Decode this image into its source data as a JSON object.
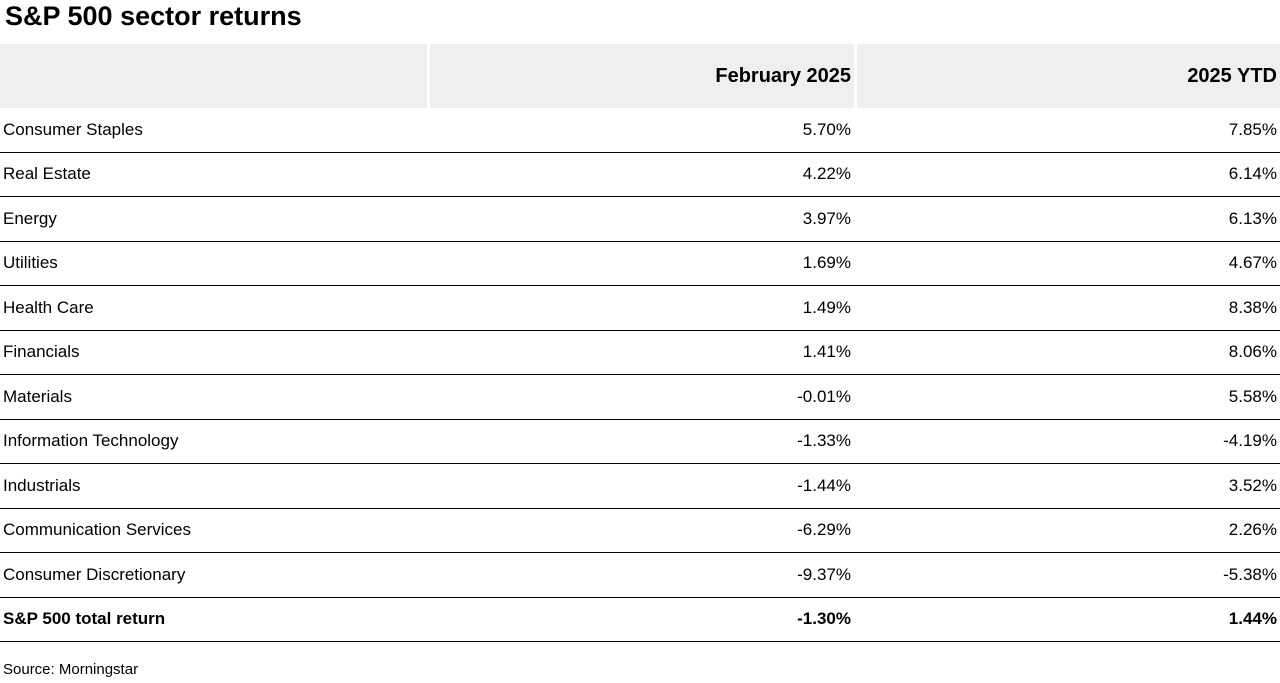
{
  "title": "S&P 500 sector returns",
  "chart_data": {
    "type": "table",
    "columns": [
      "",
      "February 2025",
      "2025 YTD"
    ],
    "rows": [
      {
        "sector": "Consumer Staples",
        "february_2025": "5.70%",
        "ytd_2025": "7.85%"
      },
      {
        "sector": "Real Estate",
        "february_2025": "4.22%",
        "ytd_2025": "6.14%"
      },
      {
        "sector": "Energy",
        "february_2025": "3.97%",
        "ytd_2025": "6.13%"
      },
      {
        "sector": "Utilities",
        "february_2025": "1.69%",
        "ytd_2025": "4.67%"
      },
      {
        "sector": "Health Care",
        "february_2025": "1.49%",
        "ytd_2025": "8.38%"
      },
      {
        "sector": "Financials",
        "february_2025": "1.41%",
        "ytd_2025": "8.06%"
      },
      {
        "sector": "Materials",
        "february_2025": "-0.01%",
        "ytd_2025": "5.58%"
      },
      {
        "sector": "Information Technology",
        "february_2025": "-1.33%",
        "ytd_2025": "-4.19%"
      },
      {
        "sector": "Industrials",
        "february_2025": "-1.44%",
        "ytd_2025": "3.52%"
      },
      {
        "sector": "Communication Services",
        "february_2025": "-6.29%",
        "ytd_2025": "2.26%"
      },
      {
        "sector": "Consumer Discretionary",
        "february_2025": "-9.37%",
        "ytd_2025": "-5.38%"
      }
    ],
    "total": {
      "sector": "S&P 500 total return",
      "february_2025": "-1.30%",
      "ytd_2025": "1.44%"
    }
  },
  "source": "Source: Morningstar",
  "colors": {
    "header_bg": "#efefef",
    "text": "#000000",
    "rule": "#000000"
  }
}
